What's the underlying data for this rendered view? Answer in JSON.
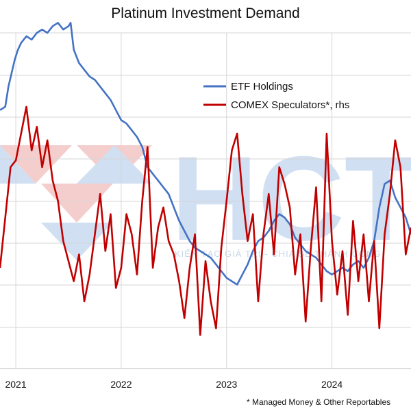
{
  "chart_data": {
    "type": "line",
    "title": "Platinum Investment Demand",
    "x_tick_labels": [
      "2021",
      "2022",
      "2023",
      "2024"
    ],
    "xlim": [
      2020.85,
      2024.75
    ],
    "grid": true,
    "legend_position": "top-right",
    "footnote": "* Managed Money & Other Reportables",
    "watermark": {
      "logo_text": "HCT",
      "tagline": "KIẾN TẠO GIÁ TRỊ - CHIA SẺ THÀNH CÔNG"
    },
    "series": [
      {
        "name": "ETF Holdings",
        "axis": "left",
        "color": "#4472c4",
        "ylim": [
          0,
          100
        ],
        "x": [
          2020.85,
          2020.9,
          2020.93,
          2020.96,
          2020.99,
          2021.02,
          2021.05,
          2021.1,
          2021.15,
          2021.2,
          2021.25,
          2021.3,
          2021.35,
          2021.4,
          2021.45,
          2021.5,
          2021.52,
          2021.55,
          2021.6,
          2021.65,
          2021.7,
          2021.75,
          2021.8,
          2021.85,
          2021.9,
          2021.95,
          2022.0,
          2022.05,
          2022.1,
          2022.15,
          2022.2,
          2022.25,
          2022.3,
          2022.35,
          2022.4,
          2022.45,
          2022.5,
          2022.55,
          2022.6,
          2022.65,
          2022.7,
          2022.75,
          2022.8,
          2022.85,
          2022.9,
          2022.95,
          2023.0,
          2023.05,
          2023.1,
          2023.15,
          2023.2,
          2023.25,
          2023.3,
          2023.35,
          2023.4,
          2023.45,
          2023.5,
          2023.55,
          2023.6,
          2023.65,
          2023.7,
          2023.75,
          2023.8,
          2023.85,
          2023.9,
          2023.95,
          2024.0,
          2024.05,
          2024.1,
          2024.15,
          2024.2,
          2024.25,
          2024.3,
          2024.35,
          2024.4,
          2024.45,
          2024.5,
          2024.55,
          2024.6,
          2024.65,
          2024.7,
          2024.75
        ],
        "values": [
          77,
          78,
          84,
          88,
          92,
          95,
          97,
          99,
          98,
          100,
          101,
          100,
          102,
          103,
          101,
          102,
          103,
          95,
          91,
          89,
          87,
          86,
          84,
          82,
          80,
          77,
          74,
          73,
          71,
          69,
          66,
          60,
          58,
          56,
          54,
          52,
          48,
          44,
          41,
          38,
          36,
          35,
          34,
          33,
          31,
          29,
          27,
          26,
          25,
          28,
          31,
          35,
          38,
          39,
          41,
          44,
          46,
          45,
          43,
          39,
          37,
          35,
          34,
          33,
          31,
          29,
          28,
          29,
          30,
          29,
          31,
          32,
          30,
          33,
          38,
          48,
          55,
          56,
          51,
          48,
          45,
          40
        ]
      },
      {
        "name": "COMEX Speculators*, rhs",
        "axis": "right",
        "color": "#c00000",
        "ylim": [
          0,
          100
        ],
        "x": [
          2020.85,
          2020.9,
          2020.95,
          2021.0,
          2021.05,
          2021.1,
          2021.15,
          2021.2,
          2021.25,
          2021.3,
          2021.35,
          2021.4,
          2021.45,
          2021.5,
          2021.55,
          2021.6,
          2021.65,
          2021.7,
          2021.75,
          2021.8,
          2021.85,
          2021.9,
          2021.95,
          2022.0,
          2022.05,
          2022.1,
          2022.15,
          2022.2,
          2022.25,
          2022.3,
          2022.35,
          2022.4,
          2022.45,
          2022.5,
          2022.55,
          2022.6,
          2022.65,
          2022.7,
          2022.75,
          2022.8,
          2022.85,
          2022.9,
          2022.95,
          2023.0,
          2023.05,
          2023.1,
          2023.15,
          2023.2,
          2023.25,
          2023.3,
          2023.35,
          2023.4,
          2023.45,
          2023.5,
          2023.55,
          2023.6,
          2023.65,
          2023.7,
          2023.75,
          2023.8,
          2023.85,
          2023.9,
          2023.95,
          2024.0,
          2024.05,
          2024.1,
          2024.15,
          2024.2,
          2024.25,
          2024.3,
          2024.35,
          2024.4,
          2024.45,
          2024.5,
          2024.55,
          2024.6,
          2024.65,
          2024.7,
          2024.75
        ],
        "values": [
          30,
          45,
          60,
          62,
          70,
          78,
          65,
          72,
          60,
          68,
          56,
          50,
          38,
          32,
          26,
          34,
          20,
          28,
          40,
          52,
          35,
          46,
          24,
          30,
          46,
          40,
          28,
          50,
          66,
          30,
          42,
          48,
          38,
          34,
          26,
          15,
          30,
          40,
          10,
          32,
          20,
          12,
          36,
          50,
          65,
          70,
          52,
          38,
          46,
          20,
          40,
          52,
          34,
          60,
          55,
          48,
          28,
          40,
          14,
          36,
          54,
          20,
          70,
          38,
          22,
          35,
          16,
          44,
          26,
          40,
          20,
          38,
          12,
          40,
          52,
          68,
          60,
          34,
          42
        ]
      }
    ]
  }
}
